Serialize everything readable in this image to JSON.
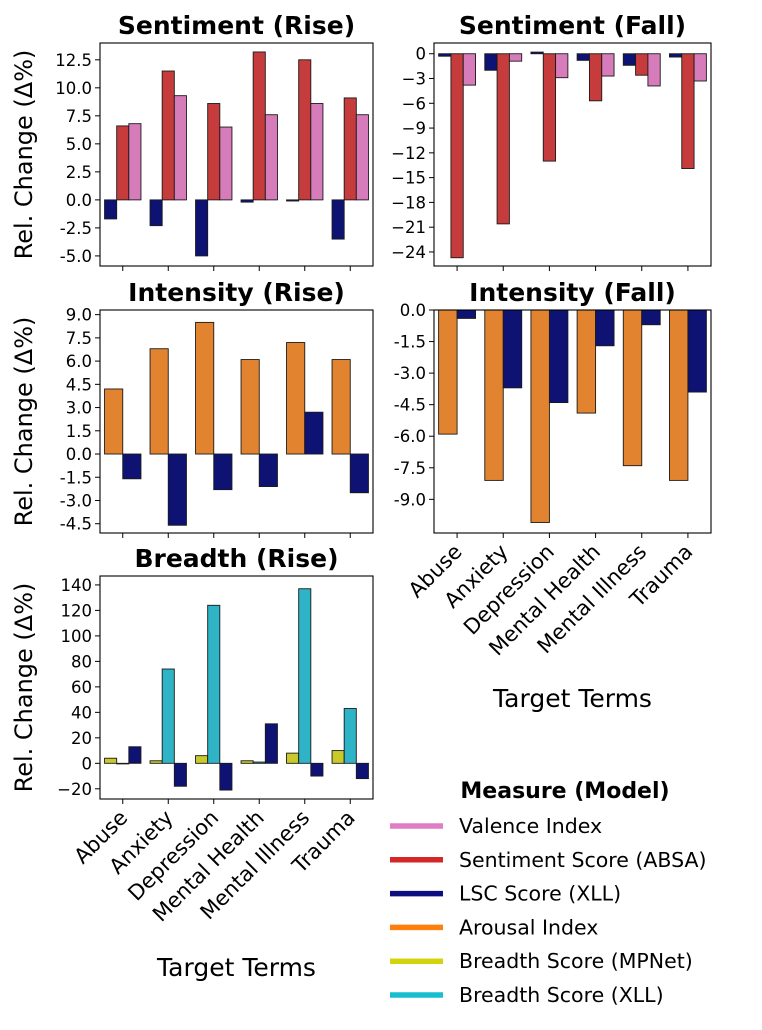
{
  "chart_data": [
    {
      "id": "sent_rise",
      "type": "bar",
      "title": "Sentiment (Rise)",
      "ylabel": "Rel. Change (Δ%)",
      "xlabel": "",
      "ylim": [
        -5.9,
        14.0
      ],
      "yticks": [
        -5.0,
        -2.5,
        0.0,
        2.5,
        5.0,
        7.5,
        10.0,
        12.5
      ],
      "ytick_labels": [
        "-5.0",
        "-2.5",
        "0.0",
        "2.5",
        "5.0",
        "7.5",
        "10.0",
        "12.5"
      ],
      "categories": [
        "Abuse",
        "Anxiety",
        "Depression",
        "Mental Health",
        "Mental Illness",
        "Trauma"
      ],
      "series": [
        {
          "name": "LSC Score (XLL)",
          "color": "#0d1273",
          "values": [
            -1.7,
            -2.3,
            -5.0,
            -0.2,
            -0.1,
            -3.5
          ]
        },
        {
          "name": "Sentiment Score (ABSA)",
          "color": "#c63c3c",
          "values": [
            6.6,
            11.5,
            8.6,
            13.2,
            12.5,
            9.1
          ]
        },
        {
          "name": "Valence Index",
          "color": "#d77cba",
          "values": [
            6.8,
            9.3,
            6.5,
            7.6,
            8.6,
            7.6
          ]
        }
      ]
    },
    {
      "id": "sent_fall",
      "type": "bar",
      "title": "Sentiment (Fall)",
      "ylabel": "",
      "xlabel": "",
      "ylim": [
        -25.7,
        1.3
      ],
      "yticks": [
        0,
        -3,
        -6,
        -9,
        -12,
        -15,
        -18,
        -21,
        -24
      ],
      "ytick_labels": [
        "0",
        "−3",
        "−6",
        "−9",
        "−12",
        "−15",
        "−18",
        "−21",
        "−24"
      ],
      "categories": [
        "Abuse",
        "Anxiety",
        "Depression",
        "Mental Health",
        "Mental Illness",
        "Trauma"
      ],
      "series": [
        {
          "name": "LSC Score (XLL)",
          "color": "#0d1273",
          "values": [
            -0.3,
            -2.0,
            0.2,
            -0.8,
            -1.4,
            -0.4
          ]
        },
        {
          "name": "Sentiment Score (ABSA)",
          "color": "#c63c3c",
          "values": [
            -24.7,
            -20.6,
            -13.0,
            -5.7,
            -2.6,
            -13.9
          ]
        },
        {
          "name": "Valence Index",
          "color": "#d77cba",
          "values": [
            -3.8,
            -0.9,
            -2.9,
            -2.7,
            -3.9,
            -3.3
          ]
        }
      ]
    },
    {
      "id": "int_rise",
      "type": "bar",
      "title": "Intensity (Rise)",
      "ylabel": "Rel. Change (Δ%)",
      "xlabel": "",
      "ylim": [
        -5.1,
        9.3
      ],
      "yticks": [
        -4.5,
        -3.0,
        -1.5,
        0.0,
        1.5,
        3.0,
        4.5,
        6.0,
        7.5,
        9.0
      ],
      "ytick_labels": [
        "-4.5",
        "-3.0",
        "-1.5",
        "0.0",
        "1.5",
        "3.0",
        "4.5",
        "6.0",
        "7.5",
        "9.0"
      ],
      "categories": [
        "Abuse",
        "Anxiety",
        "Depression",
        "Mental Health",
        "Mental Illness",
        "Trauma"
      ],
      "series": [
        {
          "name": "Arousal Index",
          "color": "#e2842f",
          "values": [
            4.2,
            6.8,
            8.5,
            6.1,
            7.2,
            6.1
          ]
        },
        {
          "name": "LSC Score (XLL)",
          "color": "#0d1273",
          "values": [
            -1.6,
            -4.6,
            -2.3,
            -2.1,
            2.7,
            -2.5
          ]
        }
      ]
    },
    {
      "id": "int_fall",
      "type": "bar",
      "title": "Intensity (Fall)",
      "ylabel": "",
      "xlabel": "Target Terms",
      "ylim": [
        -10.6,
        0.0
      ],
      "yticks": [
        0.0,
        -1.5,
        -3.0,
        -4.5,
        -6.0,
        -7.5,
        -9.0
      ],
      "ytick_labels": [
        "0.0",
        "-1.5",
        "-3.0",
        "-4.5",
        "-6.0",
        "-7.5",
        "-9.0"
      ],
      "categories": [
        "Abuse",
        "Anxiety",
        "Depression",
        "Mental Health",
        "Mental Illness",
        "Trauma"
      ],
      "series": [
        {
          "name": "Arousal Index",
          "color": "#e2842f",
          "values": [
            -5.9,
            -8.1,
            -10.1,
            -4.9,
            -7.4,
            -8.1
          ]
        },
        {
          "name": "LSC Score (XLL)",
          "color": "#0d1273",
          "values": [
            -0.4,
            -3.7,
            -4.4,
            -1.7,
            -0.7,
            -3.9
          ]
        }
      ]
    },
    {
      "id": "breadth_rise",
      "type": "bar",
      "title": "Breadth (Rise)",
      "ylabel": "Rel. Change (Δ%)",
      "xlabel": "Target Terms",
      "ylim": [
        -28,
        147
      ],
      "yticks": [
        -20,
        0,
        20,
        40,
        60,
        80,
        100,
        120,
        140
      ],
      "ytick_labels": [
        "−20",
        "0",
        "20",
        "40",
        "60",
        "80",
        "100",
        "120",
        "140"
      ],
      "categories": [
        "Abuse",
        "Anxiety",
        "Depression",
        "Mental Health",
        "Mental Illness",
        "Trauma"
      ],
      "series": [
        {
          "name": "Breadth Score (MPNet)",
          "color": "#c9c92a",
          "values": [
            4,
            2,
            6,
            2,
            8,
            10
          ]
        },
        {
          "name": "Breadth Score (XLL)",
          "color": "#2eb4c6",
          "values": [
            0,
            74,
            124,
            1,
            137,
            43
          ]
        },
        {
          "name": "LSC Score (XLL)",
          "color": "#0d1273",
          "values": [
            13,
            -18,
            -21,
            31,
            -10,
            -12
          ]
        }
      ]
    }
  ],
  "legend": {
    "title": "Measure (Model)",
    "items": [
      {
        "label": "Valence Index",
        "color": "#e07dc4"
      },
      {
        "label": "Sentiment Score (ABSA)",
        "color": "#d62728"
      },
      {
        "label": "LSC Score (XLL)",
        "color": "#0d0d80"
      },
      {
        "label": "Arousal Index",
        "color": "#ff7f0e"
      },
      {
        "label": "Breadth Score (MPNet)",
        "color": "#d4d40e"
      },
      {
        "label": "Breadth Score (XLL)",
        "color": "#17becf"
      }
    ]
  }
}
